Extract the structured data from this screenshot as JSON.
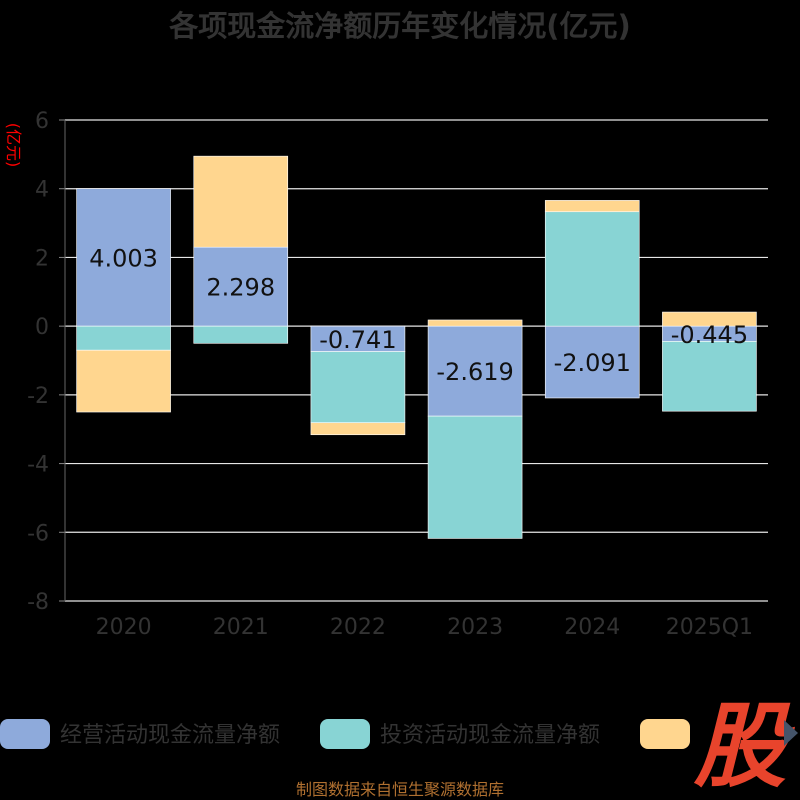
{
  "chart_data": {
    "type": "bar",
    "stacked": true,
    "title": "各项现金流净额历年变化情况(亿元)",
    "ylabel": "(亿元)",
    "ylim": [
      -8,
      6
    ],
    "yticks": [
      6,
      4,
      2,
      0,
      -2,
      -4,
      -6,
      -8
    ],
    "categories": [
      "2020",
      "2021",
      "2022",
      "2023",
      "2024",
      "2025Q1"
    ],
    "series": [
      {
        "name": "经营活动现金流量净额",
        "color": "#8eaadb",
        "values": [
          4.003,
          2.298,
          -0.741,
          -2.619,
          -2.091,
          -0.445
        ],
        "labels": [
          "4.003",
          "2.298",
          "-0.741",
          "-2.619",
          "-2.091",
          "-0.445"
        ]
      },
      {
        "name": "投资活动现金流量净额",
        "color": "#88d4d4",
        "values": [
          -0.7,
          -0.5,
          -2.07,
          -3.56,
          3.33,
          -2.03
        ]
      },
      {
        "name": "",
        "color": "#ffd68f",
        "values": [
          -1.8,
          2.65,
          -0.35,
          0.18,
          0.33,
          0.41
        ]
      }
    ],
    "grid": true,
    "legend_position": "bottom"
  },
  "source": "制图数据来自恒生聚源数据库",
  "logo": {
    "text": "股",
    "color": "#e8442c"
  }
}
